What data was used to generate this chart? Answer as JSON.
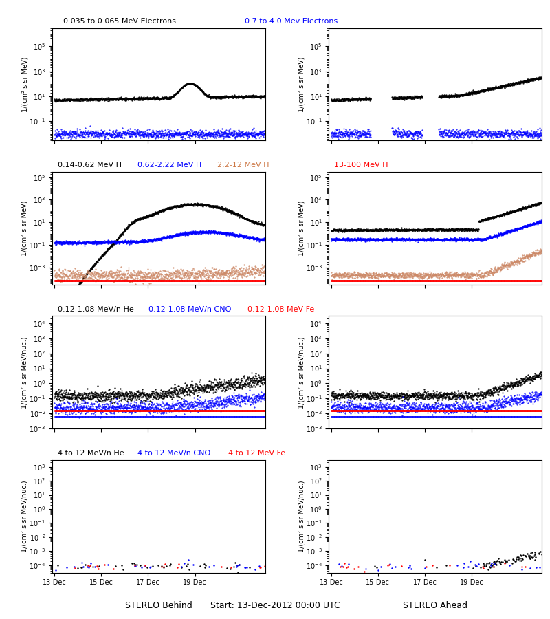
{
  "title_row0_left": "0.035 to 0.065 MeV Electrons",
  "title_row0_right": "0.7 to 4.0 Mev Electrons",
  "title_row0_right_color": "blue",
  "title_row1_t1": "0.14-0.62 MeV H",
  "title_row1_t2": "0.62-2.22 MeV H",
  "title_row1_t3": "2.2-12 MeV H",
  "title_row1_t4": "13-100 MeV H",
  "title_row1_c2": "blue",
  "title_row1_c3": "#cc7744",
  "title_row1_c4": "red",
  "title_row2_t1": "0.12-1.08 MeV/n He",
  "title_row2_t2": "0.12-1.08 MeV/n CNO",
  "title_row2_t3": "0.12-1.08 MeV Fe",
  "title_row2_c2": "blue",
  "title_row2_c3": "red",
  "title_row3_t1": "4 to 12 MeV/n He",
  "title_row3_t2": "4 to 12 MeV/n CNO",
  "title_row3_t3": "4 to 12 MeV Fe",
  "title_row3_c2": "blue",
  "title_row3_c3": "red",
  "xlabel_left": "STEREO Behind",
  "xlabel_center": "Start: 13-Dec-2012 00:00 UTC",
  "xlabel_right": "STEREO Ahead",
  "xticklabels": [
    "13-Dec",
    "15-Dec",
    "17-Dec",
    "19-Dec"
  ],
  "ylabel_mev": "1/(cm² s sr MeV)",
  "ylabel_mevnuc": "1/(cm² s sr MeV/nuc.)",
  "ylim_row0": [
    0.003,
    3000000.0
  ],
  "ylim_row1": [
    3e-05,
    300000.0
  ],
  "ylim_row2": [
    0.001,
    30000.0
  ],
  "ylim_row3": [
    3e-05,
    3000.0
  ],
  "bg_color": "white",
  "title_fontsize": 8,
  "tick_fontsize": 7,
  "ylabel_fontsize": 7
}
